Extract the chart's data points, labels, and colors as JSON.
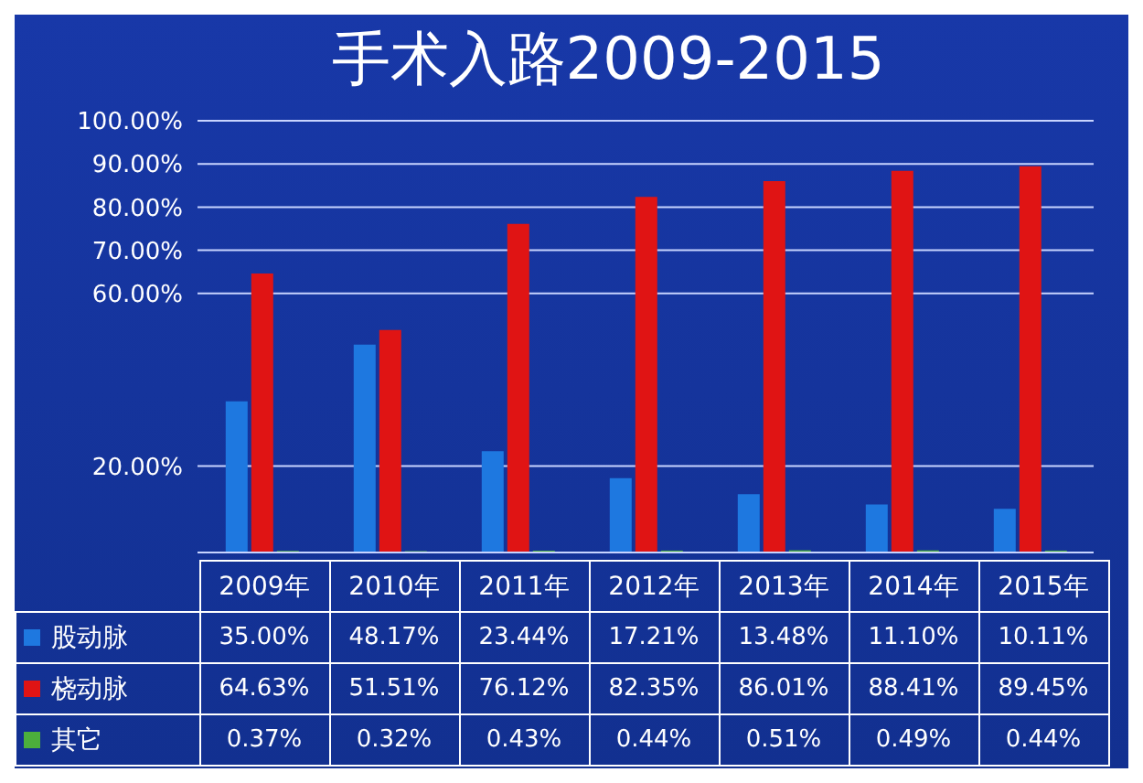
{
  "chart_data": {
    "type": "bar",
    "title": "手术入路2009-2015",
    "categories": [
      "2009年",
      "2010年",
      "2011年",
      "2012年",
      "2013年",
      "2014年",
      "2015年"
    ],
    "series": [
      {
        "name": "股动脉",
        "color": "#1e78e0",
        "values": [
          35.0,
          48.17,
          23.44,
          17.21,
          13.48,
          11.1,
          10.11
        ],
        "value_labels": [
          "35.00%",
          "48.17%",
          "23.44%",
          "17.21%",
          "13.48%",
          "11.10%",
          "10.11%"
        ]
      },
      {
        "name": "桡动脉",
        "color": "#e01414",
        "values": [
          64.63,
          51.51,
          76.12,
          82.35,
          86.01,
          88.41,
          89.45
        ],
        "value_labels": [
          "64.63%",
          "51.51%",
          "76.12%",
          "82.35%",
          "86.01%",
          "88.41%",
          "89.45%"
        ]
      },
      {
        "name": "其它",
        "color": "#4caf3c",
        "values": [
          0.37,
          0.32,
          0.43,
          0.44,
          0.51,
          0.49,
          0.44
        ],
        "value_labels": [
          "0.37%",
          "0.32%",
          "0.43%",
          "0.44%",
          "0.51%",
          "0.49%",
          "0.44%"
        ]
      }
    ],
    "ylim": [
      0,
      100
    ],
    "yticks": [
      {
        "value": 20,
        "label": "20.00%"
      },
      {
        "value": 60,
        "label": "60.00%"
      },
      {
        "value": 70,
        "label": "70.00%"
      },
      {
        "value": 80,
        "label": "80.00%"
      },
      {
        "value": 90,
        "label": "90.00%"
      },
      {
        "value": 100,
        "label": "100.00%"
      }
    ],
    "grid": "y",
    "legend": "bottom left"
  }
}
